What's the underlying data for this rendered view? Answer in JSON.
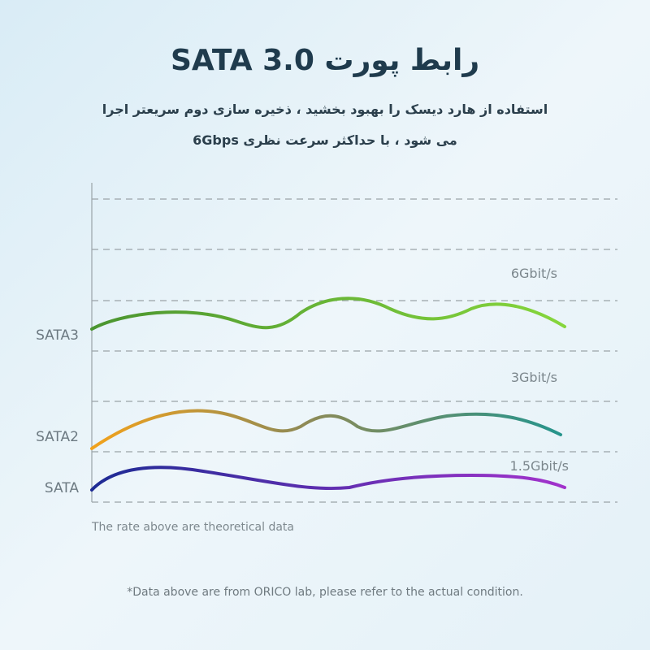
{
  "title": "رابط پورت SATA 3.0",
  "subtitle": [
    "استفاده از هارد دیسک را بهبود بخشید ، ذخیره سازی دوم سریعتر اجرا",
    "می شود ، با حداکثر سرعت نظری 6Gbps"
  ],
  "rows": [
    {
      "label": "SATA3",
      "speed": "6Gbit/s"
    },
    {
      "label": "SATA2",
      "speed": "3Gbit/s"
    },
    {
      "label": "SATA",
      "speed": "1.5Gbit/s"
    }
  ],
  "note": "The rate above are theoretical data",
  "footer": "*Data above are from ORICO lab, please refer to the actual condition."
}
